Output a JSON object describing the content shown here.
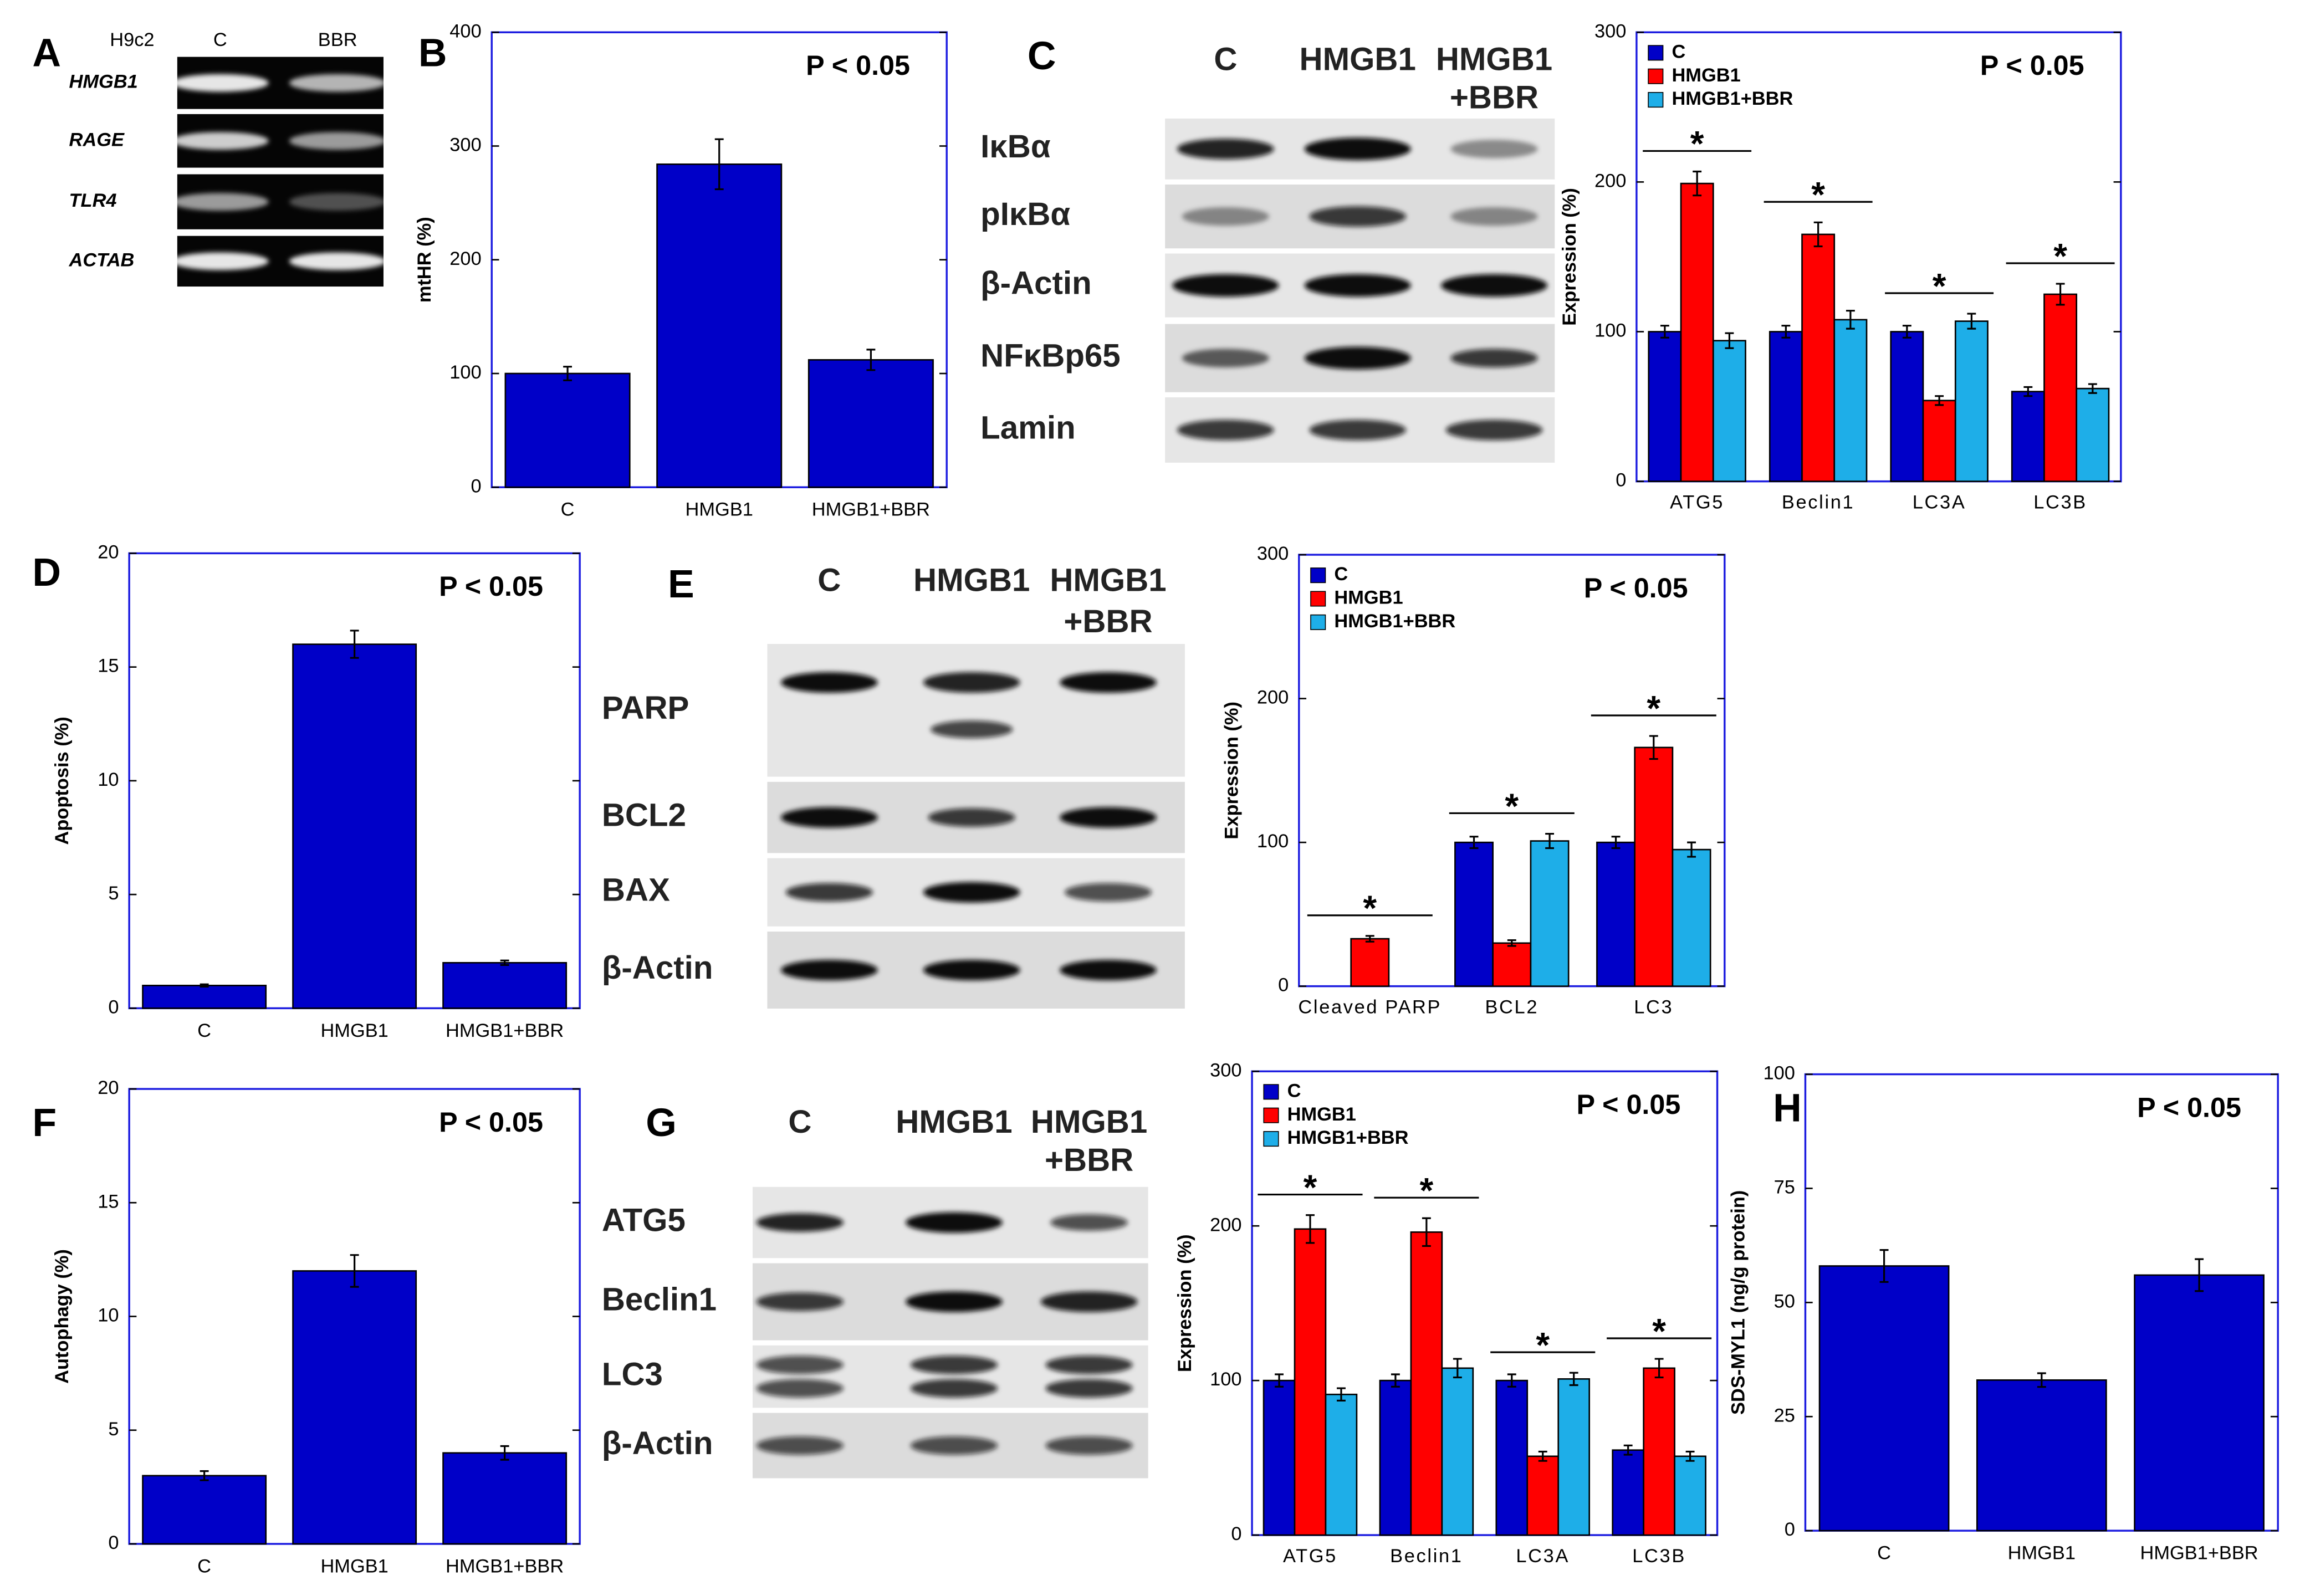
{
  "chart_data": [
    {
      "type": "bar",
      "panel": "B",
      "annotation": "P < 0.05",
      "ylabel": "mtHR (%)",
      "categories": [
        "C",
        "HMGB1",
        "HMGB1+BBR"
      ],
      "values": [
        100,
        284,
        112
      ],
      "errors": [
        6,
        22,
        9
      ],
      "color": "#0000c8",
      "ylim": [
        0,
        400
      ],
      "yticks": [
        0,
        100,
        200,
        300,
        400
      ]
    },
    {
      "type": "grouped-bar",
      "annotation": "P < 0.05",
      "ylabel": "Expression (%)",
      "categories": [
        "ATG5",
        "Beclin1",
        "LC3A",
        "LC3B"
      ],
      "series": [
        {
          "name": "C",
          "color": "#0000c8",
          "values": [
            100,
            100,
            100,
            60
          ],
          "errors": [
            4,
            4,
            4,
            3
          ]
        },
        {
          "name": "HMGB1",
          "color": "#ff0000",
          "values": [
            199,
            165,
            54,
            125
          ],
          "errors": [
            8,
            8,
            3,
            7
          ]
        },
        {
          "name": "HMGB1+BBR",
          "color": "#1eaee8",
          "values": [
            94,
            108,
            107,
            62
          ],
          "errors": [
            5,
            6,
            5,
            3
          ]
        }
      ],
      "significance": [
        "*",
        "*",
        "*",
        "*"
      ],
      "legend": "upper left",
      "ylim": [
        0,
        300
      ],
      "yticks": [
        0,
        100,
        200,
        300
      ]
    },
    {
      "type": "bar",
      "panel": "D",
      "annotation": "P < 0.05",
      "ylabel": "Apoptosis (%)",
      "categories": [
        "C",
        "HMGB1",
        "HMGB1+BBR"
      ],
      "values": [
        1,
        16,
        2
      ],
      "errors": [
        0.05,
        0.6,
        0.1
      ],
      "color": "#0000c8",
      "ylim": [
        0,
        20
      ],
      "yticks": [
        0,
        5,
        10,
        15,
        20
      ]
    },
    {
      "type": "grouped-bar",
      "annotation": "P < 0.05",
      "ylabel": "Expression (%)",
      "categories": [
        "Cleaved PARP",
        "BCL2",
        "LC3"
      ],
      "series": [
        {
          "name": "C",
          "color": "#0000c8",
          "values": [
            null,
            100,
            100
          ],
          "errors": [
            null,
            4,
            4
          ]
        },
        {
          "name": "HMGB1",
          "color": "#ff0000",
          "values": [
            33,
            30,
            166
          ],
          "errors": [
            2,
            2,
            8
          ]
        },
        {
          "name": "HMGB1+BBR",
          "color": "#1eaee8",
          "values": [
            null,
            101,
            95
          ],
          "errors": [
            null,
            5,
            5
          ]
        }
      ],
      "significance": [
        "*",
        "*",
        "*"
      ],
      "legend": "upper left",
      "ylim": [
        0,
        300
      ],
      "yticks": [
        0,
        100,
        200,
        300
      ]
    },
    {
      "type": "bar",
      "panel": "F",
      "annotation": "P < 0.05",
      "ylabel": "Autophagy (%)",
      "categories": [
        "C",
        "HMGB1",
        "HMGB1+BBR"
      ],
      "values": [
        3,
        12,
        4
      ],
      "errors": [
        0.2,
        0.7,
        0.3
      ],
      "color": "#0000c8",
      "ylim": [
        0,
        20
      ],
      "yticks": [
        0,
        5,
        10,
        15,
        20
      ]
    },
    {
      "type": "grouped-bar",
      "annotation": "P < 0.05",
      "ylabel": "Expression (%)",
      "categories": [
        "ATG5",
        "Beclin1",
        "LC3A",
        "LC3B"
      ],
      "series": [
        {
          "name": "C",
          "color": "#0000c8",
          "values": [
            100,
            100,
            100,
            55
          ],
          "errors": [
            4,
            4,
            4,
            3
          ]
        },
        {
          "name": "HMGB1",
          "color": "#ff0000",
          "values": [
            198,
            196,
            51,
            108
          ],
          "errors": [
            9,
            9,
            3,
            6
          ]
        },
        {
          "name": "HMGB1+BBR",
          "color": "#1eaee8",
          "values": [
            91,
            108,
            101,
            51
          ],
          "errors": [
            4,
            6,
            4,
            3
          ]
        }
      ],
      "significance": [
        "*",
        "*",
        "*",
        "*"
      ],
      "legend": "upper left",
      "ylim": [
        0,
        300
      ],
      "yticks": [
        0,
        100,
        200,
        300
      ]
    },
    {
      "type": "bar",
      "panel": "H",
      "annotation": "P < 0.05",
      "ylabel": "SDS-MYL1 (ng/g protein)",
      "categories": [
        "C",
        "HMGB1",
        "HMGB1+BBR"
      ],
      "values": [
        58,
        33,
        56
      ],
      "errors": [
        3.5,
        1.5,
        3.5
      ],
      "color": "#0000c8",
      "ylim": [
        0,
        100
      ],
      "yticks": [
        0,
        25,
        50,
        75,
        100
      ]
    }
  ],
  "blots": {
    "A": {
      "letter": "A",
      "cell_line": "H9c2",
      "lanes": [
        [
          "C"
        ],
        [
          "BBR"
        ]
      ],
      "rows": [
        "HMGB1",
        "RAGE",
        "TLR4",
        "ACTAB"
      ]
    },
    "C": {
      "letter": "C",
      "lanes": [
        [
          "C"
        ],
        [
          "HMGB1"
        ],
        [
          "HMGB1",
          "+BBR"
        ]
      ],
      "rows": [
        "IκBα",
        "pIκBα",
        "β-Actin",
        "NFκBp65",
        "Lamin"
      ]
    },
    "E": {
      "letter": "E",
      "lanes": [
        [
          "C"
        ],
        [
          "HMGB1"
        ],
        [
          "HMGB1",
          "+BBR"
        ]
      ],
      "rows": [
        "PARP",
        "BCL2",
        "BAX",
        "β-Actin"
      ]
    },
    "G": {
      "letter": "G",
      "lanes": [
        [
          "C"
        ],
        [
          "HMGB1"
        ],
        [
          "HMGB1",
          "+BBR"
        ]
      ],
      "rows": [
        "ATG5",
        "Beclin1",
        "LC3",
        "β-Actin"
      ]
    }
  }
}
